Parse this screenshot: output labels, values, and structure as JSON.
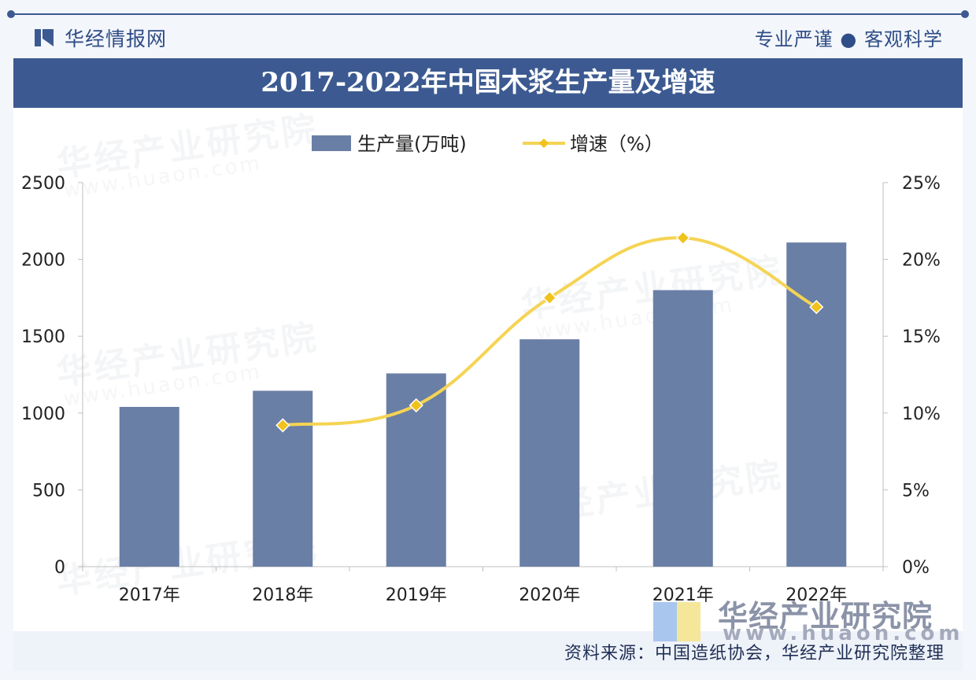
{
  "header": {
    "brand": "华经情报网",
    "slogan": "专业严谨 ● 客观科学"
  },
  "watermark": {
    "text": "华经产业研究院",
    "url": "www.huaon.com",
    "url_short": "www.huaon.com"
  },
  "colors": {
    "primary": "#3c5a91",
    "bar": "#6a7fa6",
    "line": "#f5d454",
    "marker": "#f1c21b"
  },
  "chart_data": {
    "type": "bar",
    "title": "2017-2022年中国木浆生产量及增速",
    "categories": [
      "2017年",
      "2018年",
      "2019年",
      "2020年",
      "2021年",
      "2022年"
    ],
    "series": [
      {
        "name": "生产量(万吨)",
        "type": "bar",
        "axis": "left",
        "values": [
          1040,
          1145,
          1258,
          1480,
          1800,
          2110
        ]
      },
      {
        "name": "增速（%）",
        "type": "line",
        "axis": "right",
        "values": [
          null,
          9.2,
          10.5,
          17.5,
          21.4,
          16.9
        ]
      }
    ],
    "y_left": {
      "min": 0,
      "max": 2500,
      "ticks": [
        "0",
        "500",
        "1000",
        "1500",
        "2000",
        "2500"
      ]
    },
    "y_right": {
      "min": 0,
      "max": 25,
      "ticks": [
        "0%",
        "5%",
        "10%",
        "15%",
        "20%",
        "25%"
      ]
    },
    "legend": [
      "生产量(万吨)",
      "增速（%）"
    ],
    "legend_position": "top-center",
    "grid": false
  },
  "footer": {
    "source": "资料来源：中国造纸协会，华经产业研究院整理"
  }
}
